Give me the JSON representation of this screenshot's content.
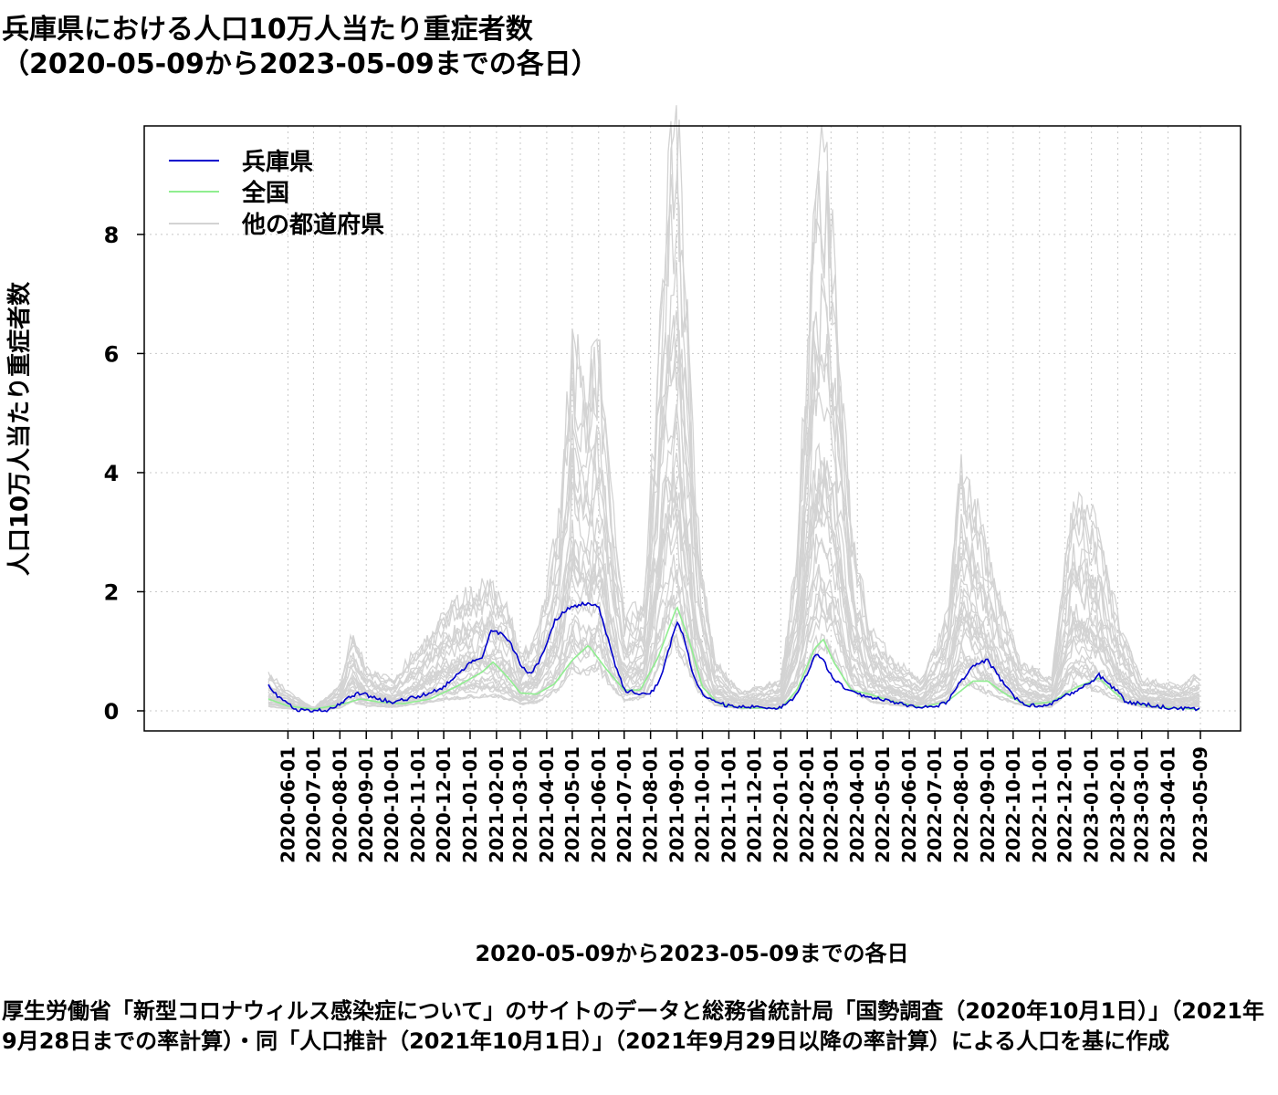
{
  "title": {
    "line1": "兵庫県における人口10万人当たり重症者数",
    "line2": "（2020-05-09から2023-05-09までの各日）"
  },
  "caption": "厚生労働省「新型コロナウィルス感染症について」のサイトのデータと総務省統計局「国勢調査（2020年10月1日）」（2021年9月28日までの率計算）・同「人口推計（2021年10月1日）」（2021年9月29日以降の率計算）による人口を基に作成",
  "chart_data": {
    "type": "line",
    "xlabel": "2020-05-09から2023-05-09までの各日",
    "ylabel": "人口10万人当たり重症者数",
    "xlim": [
      "2020-05-09",
      "2023-05-09"
    ],
    "ylim": [
      0,
      9.6
    ],
    "y_ticks": [
      0,
      2,
      4,
      6,
      8
    ],
    "x_ticks": [
      "2020-06-01",
      "2020-07-01",
      "2020-08-01",
      "2020-09-01",
      "2020-10-01",
      "2020-11-01",
      "2020-12-01",
      "2021-01-01",
      "2021-02-01",
      "2021-03-01",
      "2021-04-01",
      "2021-05-01",
      "2021-06-01",
      "2021-07-01",
      "2021-08-01",
      "2021-09-01",
      "2021-10-01",
      "2021-11-01",
      "2021-12-01",
      "2022-01-01",
      "2022-02-01",
      "2022-03-01",
      "2022-04-01",
      "2022-05-01",
      "2022-06-01",
      "2022-07-01",
      "2022-08-01",
      "2022-09-01",
      "2022-10-01",
      "2022-11-01",
      "2022-12-01",
      "2023-01-01",
      "2023-02-01",
      "2023-03-01",
      "2023-04-01",
      "2023-05-09"
    ],
    "grid": true,
    "legend_position": "top-left",
    "series": [
      {
        "name": "兵庫県",
        "color": "#0000cc",
        "points": [
          [
            "2020-05-09",
            0.45
          ],
          [
            "2020-05-20",
            0.25
          ],
          [
            "2020-06-01",
            0.12
          ],
          [
            "2020-06-10",
            0.02
          ],
          [
            "2020-07-15",
            0.0
          ],
          [
            "2020-08-01",
            0.1
          ],
          [
            "2020-08-10",
            0.22
          ],
          [
            "2020-08-25",
            0.3
          ],
          [
            "2020-09-10",
            0.22
          ],
          [
            "2020-10-01",
            0.15
          ],
          [
            "2020-10-20",
            0.2
          ],
          [
            "2020-11-10",
            0.28
          ],
          [
            "2020-12-01",
            0.4
          ],
          [
            "2020-12-15",
            0.6
          ],
          [
            "2021-01-01",
            0.8
          ],
          [
            "2021-01-15",
            0.9
          ],
          [
            "2021-01-25",
            1.35
          ],
          [
            "2021-02-05",
            1.3
          ],
          [
            "2021-02-15",
            1.2
          ],
          [
            "2021-03-01",
            0.8
          ],
          [
            "2021-03-10",
            0.6
          ],
          [
            "2021-03-20",
            0.75
          ],
          [
            "2021-04-01",
            1.1
          ],
          [
            "2021-04-10",
            1.5
          ],
          [
            "2021-04-20",
            1.65
          ],
          [
            "2021-05-01",
            1.75
          ],
          [
            "2021-05-15",
            1.8
          ],
          [
            "2021-06-01",
            1.75
          ],
          [
            "2021-06-10",
            1.3
          ],
          [
            "2021-06-20",
            0.8
          ],
          [
            "2021-07-01",
            0.35
          ],
          [
            "2021-07-15",
            0.3
          ],
          [
            "2021-08-01",
            0.3
          ],
          [
            "2021-08-10",
            0.45
          ],
          [
            "2021-08-20",
            0.9
          ],
          [
            "2021-09-01",
            1.5
          ],
          [
            "2021-09-10",
            1.2
          ],
          [
            "2021-09-20",
            0.6
          ],
          [
            "2021-10-01",
            0.3
          ],
          [
            "2021-10-15",
            0.15
          ],
          [
            "2021-11-01",
            0.08
          ],
          [
            "2021-12-01",
            0.06
          ],
          [
            "2022-01-01",
            0.05
          ],
          [
            "2022-01-15",
            0.2
          ],
          [
            "2022-02-01",
            0.6
          ],
          [
            "2022-02-10",
            0.95
          ],
          [
            "2022-02-20",
            0.85
          ],
          [
            "2022-03-01",
            0.6
          ],
          [
            "2022-03-15",
            0.4
          ],
          [
            "2022-04-01",
            0.28
          ],
          [
            "2022-05-01",
            0.18
          ],
          [
            "2022-06-01",
            0.08
          ],
          [
            "2022-07-01",
            0.06
          ],
          [
            "2022-07-15",
            0.15
          ],
          [
            "2022-08-01",
            0.5
          ],
          [
            "2022-08-15",
            0.75
          ],
          [
            "2022-09-01",
            0.85
          ],
          [
            "2022-09-15",
            0.55
          ],
          [
            "2022-10-01",
            0.25
          ],
          [
            "2022-10-15",
            0.1
          ],
          [
            "2022-11-01",
            0.08
          ],
          [
            "2022-11-20",
            0.15
          ],
          [
            "2022-12-01",
            0.25
          ],
          [
            "2022-12-15",
            0.35
          ],
          [
            "2023-01-01",
            0.5
          ],
          [
            "2023-01-10",
            0.6
          ],
          [
            "2023-01-20",
            0.45
          ],
          [
            "2023-02-01",
            0.35
          ],
          [
            "2023-02-10",
            0.15
          ],
          [
            "2023-03-01",
            0.12
          ],
          [
            "2023-04-01",
            0.05
          ],
          [
            "2023-05-09",
            0.02
          ]
        ]
      },
      {
        "name": "全国",
        "color": "#90ee90",
        "points": [
          [
            "2020-05-09",
            0.2
          ],
          [
            "2020-06-01",
            0.08
          ],
          [
            "2020-07-01",
            0.03
          ],
          [
            "2020-08-01",
            0.1
          ],
          [
            "2020-08-25",
            0.2
          ],
          [
            "2020-09-15",
            0.15
          ],
          [
            "2020-10-15",
            0.12
          ],
          [
            "2020-11-15",
            0.2
          ],
          [
            "2020-12-15",
            0.4
          ],
          [
            "2021-01-15",
            0.65
          ],
          [
            "2021-01-28",
            0.82
          ],
          [
            "2021-02-15",
            0.55
          ],
          [
            "2021-03-01",
            0.3
          ],
          [
            "2021-03-20",
            0.28
          ],
          [
            "2021-04-10",
            0.45
          ],
          [
            "2021-05-01",
            0.85
          ],
          [
            "2021-05-20",
            1.1
          ],
          [
            "2021-06-10",
            0.7
          ],
          [
            "2021-07-01",
            0.35
          ],
          [
            "2021-07-20",
            0.35
          ],
          [
            "2021-08-10",
            0.9
          ],
          [
            "2021-09-01",
            1.75
          ],
          [
            "2021-09-15",
            1.2
          ],
          [
            "2021-10-01",
            0.4
          ],
          [
            "2021-10-20",
            0.12
          ],
          [
            "2021-11-15",
            0.05
          ],
          [
            "2022-01-01",
            0.04
          ],
          [
            "2022-01-20",
            0.35
          ],
          [
            "2022-02-10",
            1.05
          ],
          [
            "2022-02-20",
            1.2
          ],
          [
            "2022-03-05",
            0.8
          ],
          [
            "2022-03-25",
            0.35
          ],
          [
            "2022-04-15",
            0.28
          ],
          [
            "2022-05-15",
            0.15
          ],
          [
            "2022-06-15",
            0.06
          ],
          [
            "2022-07-15",
            0.15
          ],
          [
            "2022-08-15",
            0.5
          ],
          [
            "2022-09-01",
            0.5
          ],
          [
            "2022-09-20",
            0.3
          ],
          [
            "2022-10-15",
            0.1
          ],
          [
            "2022-11-15",
            0.15
          ],
          [
            "2022-12-15",
            0.4
          ],
          [
            "2023-01-10",
            0.55
          ],
          [
            "2023-01-25",
            0.35
          ],
          [
            "2023-02-10",
            0.15
          ],
          [
            "2023-03-15",
            0.07
          ],
          [
            "2023-05-09",
            0.02
          ]
        ]
      },
      {
        "name": "他の都道府県",
        "color": "#d3d3d3",
        "points": [
          [
            "2020-05-09",
            0.6
          ],
          [
            "2020-06-01",
            0.3
          ],
          [
            "2020-07-01",
            0.05
          ],
          [
            "2020-08-01",
            0.4
          ],
          [
            "2020-08-15",
            1.3
          ],
          [
            "2020-09-01",
            0.7
          ],
          [
            "2020-10-01",
            0.5
          ],
          [
            "2020-11-01",
            1.0
          ],
          [
            "2020-12-01",
            1.6
          ],
          [
            "2021-01-01",
            1.9
          ],
          [
            "2021-01-25",
            2.1
          ],
          [
            "2021-02-15",
            1.7
          ],
          [
            "2021-03-01",
            0.9
          ],
          [
            "2021-03-20",
            1.2
          ],
          [
            "2021-04-15",
            3.0
          ],
          [
            "2021-05-01",
            6.1
          ],
          [
            "2021-05-15",
            5.0
          ],
          [
            "2021-06-01",
            6.1
          ],
          [
            "2021-06-15",
            3.5
          ],
          [
            "2021-07-01",
            1.5
          ],
          [
            "2021-07-25",
            1.8
          ],
          [
            "2021-08-20",
            8.3
          ],
          [
            "2021-09-01",
            9.5
          ],
          [
            "2021-09-10",
            7.0
          ],
          [
            "2021-09-25",
            3.0
          ],
          [
            "2021-10-15",
            0.8
          ],
          [
            "2021-11-15",
            0.3
          ],
          [
            "2022-01-01",
            0.5
          ],
          [
            "2022-01-20",
            2.5
          ],
          [
            "2022-02-10",
            8.5
          ],
          [
            "2022-02-20",
            9.1
          ],
          [
            "2022-03-05",
            7.5
          ],
          [
            "2022-03-25",
            3.0
          ],
          [
            "2022-04-15",
            1.3
          ],
          [
            "2022-05-15",
            0.8
          ],
          [
            "2022-06-15",
            0.5
          ],
          [
            "2022-07-15",
            1.5
          ],
          [
            "2022-08-01",
            4.0
          ],
          [
            "2022-08-20",
            3.3
          ],
          [
            "2022-09-10",
            2.0
          ],
          [
            "2022-10-10",
            0.8
          ],
          [
            "2022-11-15",
            0.5
          ],
          [
            "2022-12-10",
            3.5
          ],
          [
            "2023-01-10",
            2.9
          ],
          [
            "2023-02-01",
            1.5
          ],
          [
            "2023-03-01",
            0.5
          ],
          [
            "2023-04-15",
            0.4
          ],
          [
            "2023-05-09",
            0.6
          ]
        ]
      }
    ]
  }
}
